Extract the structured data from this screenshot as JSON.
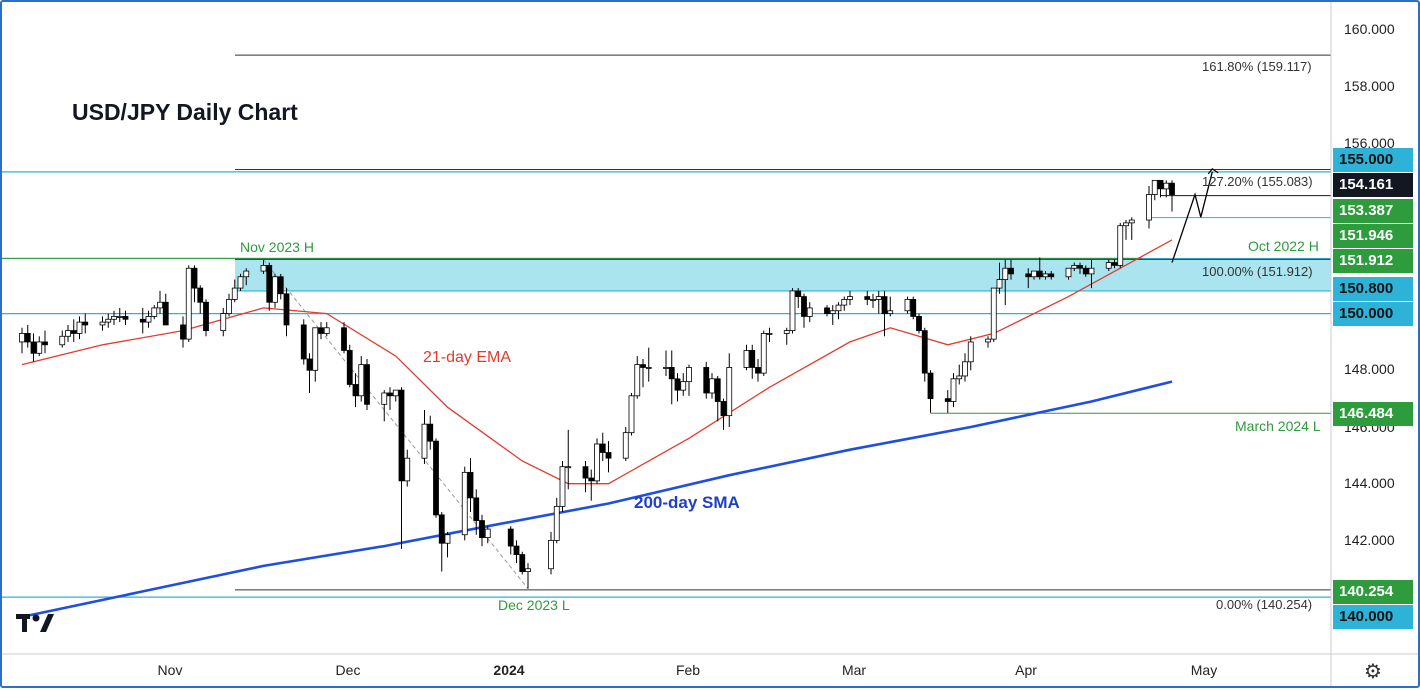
{
  "title": "USD/JPY Daily Chart",
  "annotations": {
    "nov_high": "Nov 2023 H",
    "oct_high": "Oct 2022 H",
    "march_low": "March 2024 L",
    "dec_low": "Dec 2023 L",
    "ema_label": "21-day EMA",
    "sma_label": "200-day SMA"
  },
  "fib_labels": {
    "f1618": "161.80% (159.117)",
    "f1272": "127.20% (155.083)",
    "f100": "100.00% (151.912)",
    "f0": "0.00% (140.254)"
  },
  "price_tags": [
    {
      "text": "155.000",
      "price": 155.0,
      "style": "cyan"
    },
    {
      "text": "154.161",
      "price": 154.161,
      "style": "black"
    },
    {
      "text": "153.387",
      "price": 153.387,
      "style": "green"
    },
    {
      "text": "151.946",
      "price": 151.946,
      "style": "green"
    },
    {
      "text": "151.912",
      "price": 151.912,
      "style": "green"
    },
    {
      "text": "150.800",
      "price": 150.8,
      "style": "cyan"
    },
    {
      "text": "150.000",
      "price": 150.0,
      "style": "cyan"
    },
    {
      "text": "146.484",
      "price": 146.484,
      "style": "green"
    },
    {
      "text": "140.254",
      "price": 140.254,
      "style": "green"
    },
    {
      "text": "140.000",
      "price": 140.0,
      "style": "cyan"
    }
  ],
  "y_axis_labels": [
    "160.000",
    "158.000",
    "156.000",
    "148.000",
    "146.000",
    "144.000",
    "142.000"
  ],
  "x_axis_labels": [
    "Nov",
    "Dec",
    "2024",
    "Feb",
    "Mar",
    "Apr",
    "May"
  ],
  "colors": {
    "bull": "#ffffff",
    "bear": "#000000",
    "ema": "#e33b2e",
    "sma": "#1f4fe0",
    "zone": "#a9e4ef",
    "cyan_line": "#2cb3d7",
    "green": "#2e9b3d"
  },
  "chart_data": {
    "type": "candlestick",
    "title": "USD/JPY Daily Chart",
    "ylim": [
      138.5,
      161.2
    ],
    "x_range": [
      "2023-10-02",
      "2024-05-24"
    ],
    "zone": [
      150.8,
      151.946
    ],
    "horizontal_levels": [
      155.0,
      153.387,
      151.946,
      151.912,
      150.8,
      150.0,
      146.484,
      140.254,
      140.0
    ],
    "fibonacci": [
      {
        "level": "0.00%",
        "price": 140.254
      },
      {
        "level": "100.00%",
        "price": 151.912
      },
      {
        "level": "127.20%",
        "price": 155.083
      },
      {
        "level": "161.80%",
        "price": 159.117
      }
    ],
    "last_price": 154.161,
    "candles": [
      [
        "2023-10-02",
        149.0,
        149.5,
        148.6,
        149.3
      ],
      [
        "2023-10-03",
        149.3,
        149.6,
        148.8,
        149.0
      ],
      [
        "2023-10-04",
        149.0,
        149.3,
        148.3,
        148.6
      ],
      [
        "2023-10-05",
        148.6,
        149.2,
        148.5,
        149.0
      ],
      [
        "2023-10-06",
        149.0,
        149.4,
        148.6,
        148.9
      ],
      [
        "2023-10-09",
        148.9,
        149.4,
        148.8,
        149.2
      ],
      [
        "2023-10-10",
        149.2,
        149.6,
        149.0,
        149.4
      ],
      [
        "2023-10-11",
        149.4,
        149.8,
        149.0,
        149.3
      ],
      [
        "2023-10-12",
        149.3,
        149.9,
        149.1,
        149.7
      ],
      [
        "2023-10-13",
        149.7,
        150.0,
        149.3,
        149.6
      ],
      [
        "2023-10-16",
        149.6,
        149.9,
        149.4,
        149.7
      ],
      [
        "2023-10-17",
        149.7,
        150.0,
        149.5,
        149.8
      ],
      [
        "2023-10-18",
        149.8,
        150.1,
        149.6,
        149.9
      ],
      [
        "2023-10-19",
        149.9,
        150.2,
        149.7,
        149.9
      ],
      [
        "2023-10-20",
        149.9,
        150.1,
        149.6,
        149.8
      ],
      [
        "2023-10-23",
        149.8,
        150.2,
        149.3,
        149.7
      ],
      [
        "2023-10-24",
        149.7,
        150.1,
        149.5,
        149.9
      ],
      [
        "2023-10-25",
        149.9,
        150.3,
        149.8,
        150.2
      ],
      [
        "2023-10-26",
        150.2,
        150.8,
        150.0,
        150.4
      ],
      [
        "2023-10-27",
        150.4,
        150.7,
        149.6,
        149.6
      ],
      [
        "2023-10-30",
        149.6,
        149.9,
        148.8,
        149.1
      ],
      [
        "2023-10-31",
        149.1,
        151.7,
        149.0,
        151.6
      ],
      [
        "2023-11-01",
        151.6,
        151.7,
        150.4,
        150.9
      ],
      [
        "2023-11-02",
        150.9,
        151.0,
        150.0,
        150.4
      ],
      [
        "2023-11-03",
        150.4,
        150.5,
        149.2,
        149.4
      ],
      [
        "2023-11-06",
        149.4,
        150.2,
        149.2,
        150.0
      ],
      [
        "2023-11-07",
        150.0,
        150.7,
        149.9,
        150.5
      ],
      [
        "2023-11-08",
        150.5,
        151.2,
        150.4,
        150.9
      ],
      [
        "2023-11-09",
        150.9,
        151.4,
        150.8,
        151.3
      ],
      [
        "2023-11-10",
        151.3,
        151.6,
        151.0,
        151.5
      ],
      [
        "2023-11-13",
        151.5,
        151.9,
        151.4,
        151.7
      ],
      [
        "2023-11-14",
        151.7,
        151.8,
        150.1,
        150.4
      ],
      [
        "2023-11-15",
        150.4,
        151.4,
        150.2,
        151.3
      ],
      [
        "2023-11-16",
        151.3,
        151.4,
        150.5,
        150.7
      ],
      [
        "2023-11-17",
        150.7,
        150.9,
        149.2,
        149.6
      ],
      [
        "2023-11-20",
        149.6,
        149.8,
        148.2,
        148.4
      ],
      [
        "2023-11-21",
        148.4,
        148.6,
        147.2,
        148.0
      ],
      [
        "2023-11-22",
        148.0,
        149.4,
        147.6,
        149.5
      ],
      [
        "2023-11-23",
        149.5,
        149.7,
        149.1,
        149.3
      ],
      [
        "2023-11-24",
        149.3,
        149.7,
        149.2,
        149.5
      ],
      [
        "2023-11-27",
        149.5,
        149.7,
        148.6,
        148.7
      ],
      [
        "2023-11-28",
        148.7,
        148.9,
        147.4,
        147.5
      ],
      [
        "2023-11-29",
        147.5,
        147.9,
        146.7,
        147.1
      ],
      [
        "2023-11-30",
        147.1,
        148.5,
        146.9,
        148.2
      ],
      [
        "2023-12-01",
        148.2,
        148.4,
        146.6,
        146.8
      ],
      [
        "2023-12-04",
        146.8,
        147.3,
        146.2,
        147.2
      ],
      [
        "2023-12-05",
        147.2,
        147.4,
        146.6,
        147.1
      ],
      [
        "2023-12-06",
        147.1,
        147.3,
        146.9,
        147.3
      ],
      [
        "2023-12-07",
        147.3,
        147.4,
        141.7,
        144.1
      ],
      [
        "2023-12-08",
        144.1,
        145.2,
        143.9,
        144.9
      ],
      [
        "2023-12-11",
        144.9,
        146.6,
        144.7,
        146.1
      ],
      [
        "2023-12-12",
        146.1,
        146.4,
        145.2,
        145.5
      ],
      [
        "2023-12-13",
        145.5,
        145.6,
        142.8,
        142.9
      ],
      [
        "2023-12-14",
        142.9,
        143.0,
        140.9,
        141.9
      ],
      [
        "2023-12-15",
        141.9,
        142.3,
        141.4,
        142.2
      ],
      [
        "2023-12-18",
        142.2,
        144.6,
        142.0,
        144.4
      ],
      [
        "2023-12-19",
        144.4,
        144.9,
        143.0,
        143.5
      ],
      [
        "2023-12-20",
        143.5,
        143.8,
        142.2,
        142.7
      ],
      [
        "2023-12-21",
        142.7,
        142.9,
        141.8,
        142.1
      ],
      [
        "2023-12-22",
        142.1,
        142.5,
        141.9,
        142.4
      ],
      [
        "2023-12-26",
        142.4,
        142.5,
        141.5,
        141.8
      ],
      [
        "2023-12-27",
        141.8,
        142.0,
        141.2,
        141.5
      ],
      [
        "2023-12-28",
        141.5,
        141.6,
        140.8,
        140.9
      ],
      [
        "2023-12-29",
        140.9,
        141.2,
        140.3,
        141.0
      ],
      [
        "2024-01-02",
        141.0,
        142.3,
        140.8,
        142.0
      ],
      [
        "2024-01-03",
        142.0,
        143.5,
        141.9,
        143.2
      ],
      [
        "2024-01-04",
        143.2,
        144.8,
        143.0,
        144.6
      ],
      [
        "2024-01-05",
        144.6,
        145.9,
        143.8,
        144.6
      ],
      [
        "2024-01-08",
        144.6,
        144.8,
        143.7,
        144.2
      ],
      [
        "2024-01-09",
        144.2,
        144.5,
        143.4,
        144.1
      ],
      [
        "2024-01-10",
        144.1,
        145.6,
        144.0,
        145.4
      ],
      [
        "2024-01-11",
        145.4,
        145.8,
        144.8,
        145.1
      ],
      [
        "2024-01-12",
        145.1,
        145.5,
        144.4,
        144.9
      ],
      [
        "2024-01-15",
        144.9,
        146.0,
        144.8,
        145.8
      ],
      [
        "2024-01-16",
        145.8,
        147.2,
        145.7,
        147.1
      ],
      [
        "2024-01-17",
        147.1,
        148.5,
        147.0,
        148.2
      ],
      [
        "2024-01-18",
        148.2,
        148.4,
        147.4,
        148.1
      ],
      [
        "2024-01-19",
        148.1,
        148.8,
        147.6,
        148.1
      ],
      [
        "2024-01-22",
        148.1,
        148.7,
        147.8,
        148.1
      ],
      [
        "2024-01-23",
        148.1,
        148.7,
        146.8,
        147.7
      ],
      [
        "2024-01-24",
        147.7,
        147.9,
        146.9,
        147.3
      ],
      [
        "2024-01-25",
        147.3,
        147.9,
        147.1,
        147.6
      ],
      [
        "2024-01-26",
        147.6,
        148.2,
        147.1,
        148.1
      ],
      [
        "2024-01-29",
        148.1,
        148.3,
        147.0,
        147.2
      ],
      [
        "2024-01-30",
        147.2,
        147.9,
        147.0,
        147.7
      ],
      [
        "2024-01-31",
        147.7,
        147.8,
        146.2,
        146.9
      ],
      [
        "2024-02-01",
        146.9,
        147.0,
        145.9,
        146.4
      ],
      [
        "2024-02-02",
        146.4,
        148.6,
        146.0,
        148.1
      ],
      [
        "2024-02-05",
        148.1,
        148.9,
        148.0,
        148.7
      ],
      [
        "2024-02-06",
        148.7,
        148.9,
        147.7,
        148.1
      ],
      [
        "2024-02-07",
        148.1,
        148.4,
        147.6,
        147.9
      ],
      [
        "2024-02-08",
        147.9,
        149.4,
        147.8,
        149.3
      ],
      [
        "2024-02-09",
        149.3,
        149.5,
        149.0,
        149.3
      ],
      [
        "2024-02-12",
        149.3,
        149.5,
        148.9,
        149.4
      ],
      [
        "2024-02-13",
        149.4,
        150.9,
        149.3,
        150.8
      ],
      [
        "2024-02-14",
        150.8,
        150.9,
        150.2,
        150.6
      ],
      [
        "2024-02-15",
        150.6,
        150.7,
        149.5,
        149.9
      ],
      [
        "2024-02-16",
        149.9,
        150.4,
        149.7,
        150.2
      ],
      [
        "2024-02-19",
        150.2,
        150.3,
        149.9,
        150.0
      ],
      [
        "2024-02-20",
        150.0,
        150.3,
        149.6,
        150.1
      ],
      [
        "2024-02-21",
        150.1,
        150.4,
        149.8,
        150.3
      ],
      [
        "2024-02-22",
        150.3,
        150.6,
        150.1,
        150.5
      ],
      [
        "2024-02-23",
        150.5,
        150.8,
        150.3,
        150.6
      ],
      [
        "2024-02-26",
        150.6,
        150.8,
        150.3,
        150.5
      ],
      [
        "2024-02-27",
        150.5,
        150.7,
        150.2,
        150.5
      ],
      [
        "2024-02-28",
        150.5,
        150.8,
        150.0,
        150.6
      ],
      [
        "2024-02-29",
        150.6,
        150.8,
        149.2,
        150.0
      ],
      [
        "2024-03-01",
        150.0,
        150.6,
        149.9,
        150.1
      ],
      [
        "2024-03-04",
        150.1,
        150.6,
        150.0,
        150.5
      ],
      [
        "2024-03-05",
        150.5,
        150.6,
        149.8,
        149.9
      ],
      [
        "2024-03-06",
        149.9,
        150.0,
        149.3,
        149.4
      ],
      [
        "2024-03-07",
        149.4,
        149.5,
        147.6,
        147.9
      ],
      [
        "2024-03-08",
        147.9,
        148.0,
        146.5,
        147.0
      ],
      [
        "2024-03-11",
        147.0,
        147.3,
        146.5,
        146.9
      ],
      [
        "2024-03-12",
        146.9,
        147.9,
        146.7,
        147.7
      ],
      [
        "2024-03-13",
        147.7,
        148.2,
        147.5,
        147.8
      ],
      [
        "2024-03-14",
        147.8,
        148.6,
        147.6,
        148.3
      ],
      [
        "2024-03-15",
        148.3,
        149.2,
        148.0,
        149.0
      ],
      [
        "2024-03-18",
        149.0,
        149.2,
        148.8,
        149.1
      ],
      [
        "2024-03-19",
        149.1,
        150.9,
        149.0,
        150.9
      ],
      [
        "2024-03-20",
        150.9,
        151.8,
        150.7,
        151.2
      ],
      [
        "2024-03-21",
        151.2,
        151.9,
        150.3,
        151.6
      ],
      [
        "2024-03-22",
        151.6,
        151.9,
        151.2,
        151.4
      ],
      [
        "2024-03-25",
        151.4,
        151.6,
        150.9,
        151.3
      ],
      [
        "2024-03-26",
        151.3,
        151.5,
        151.2,
        151.5
      ],
      [
        "2024-03-27",
        151.5,
        151.98,
        151.2,
        151.3
      ],
      [
        "2024-03-28",
        151.3,
        151.5,
        151.2,
        151.4
      ],
      [
        "2024-03-29",
        151.4,
        151.5,
        151.2,
        151.3
      ],
      [
        "2024-04-01",
        151.3,
        151.5,
        151.2,
        151.6
      ],
      [
        "2024-04-02",
        151.6,
        151.8,
        151.5,
        151.7
      ],
      [
        "2024-04-03",
        151.7,
        151.8,
        151.4,
        151.6
      ],
      [
        "2024-04-04",
        151.6,
        151.7,
        151.3,
        151.4
      ],
      [
        "2024-04-05",
        151.4,
        151.9,
        150.9,
        151.6
      ],
      [
        "2024-04-08",
        151.6,
        151.9,
        151.5,
        151.8
      ],
      [
        "2024-04-09",
        151.8,
        151.9,
        151.6,
        151.7
      ],
      [
        "2024-04-10",
        151.7,
        153.2,
        151.6,
        153.1
      ],
      [
        "2024-04-11",
        153.1,
        153.3,
        152.6,
        153.2
      ],
      [
        "2024-04-12",
        153.2,
        153.4,
        152.6,
        153.3
      ],
      [
        "2024-04-15",
        153.3,
        154.5,
        153.0,
        154.2
      ],
      [
        "2024-04-16",
        154.2,
        154.7,
        154.0,
        154.7
      ],
      [
        "2024-04-17",
        154.7,
        154.7,
        154.1,
        154.4
      ],
      [
        "2024-04-18",
        154.4,
        154.7,
        154.1,
        154.6
      ],
      [
        "2024-04-19",
        154.6,
        154.7,
        153.6,
        154.2
      ]
    ],
    "series": [
      {
        "name": "21-day EMA",
        "points": [
          [
            "2023-10-02",
            148.2
          ],
          [
            "2023-10-16",
            148.9
          ],
          [
            "2023-10-30",
            149.4
          ],
          [
            "2023-11-13",
            150.2
          ],
          [
            "2023-11-24",
            150.0
          ],
          [
            "2023-12-06",
            148.5
          ],
          [
            "2023-12-15",
            146.7
          ],
          [
            "2023-12-28",
            144.8
          ],
          [
            "2024-01-05",
            144.0
          ],
          [
            "2024-01-12",
            144.0
          ],
          [
            "2024-01-26",
            145.6
          ],
          [
            "2024-02-09",
            147.4
          ],
          [
            "2024-02-23",
            149.0
          ],
          [
            "2024-03-01",
            149.5
          ],
          [
            "2024-03-11",
            148.9
          ],
          [
            "2024-03-19",
            149.3
          ],
          [
            "2024-04-01",
            150.6
          ],
          [
            "2024-04-10",
            151.6
          ],
          [
            "2024-04-19",
            152.6
          ]
        ]
      },
      {
        "name": "200-day SMA",
        "points": [
          [
            "2023-10-02",
            139.3
          ],
          [
            "2023-10-23",
            140.2
          ],
          [
            "2023-11-13",
            141.1
          ],
          [
            "2023-12-04",
            141.8
          ],
          [
            "2023-12-22",
            142.5
          ],
          [
            "2024-01-12",
            143.3
          ],
          [
            "2024-02-02",
            144.3
          ],
          [
            "2024-02-23",
            145.2
          ],
          [
            "2024-03-15",
            146.0
          ],
          [
            "2024-04-05",
            146.9
          ],
          [
            "2024-04-19",
            147.6
          ]
        ]
      }
    ],
    "projection": [
      [
        "2024-04-19",
        151.8
      ],
      [
        "2024-04-23",
        154.2
      ],
      [
        "2024-04-24",
        153.4
      ],
      [
        "2024-04-26",
        155.0
      ]
    ]
  }
}
